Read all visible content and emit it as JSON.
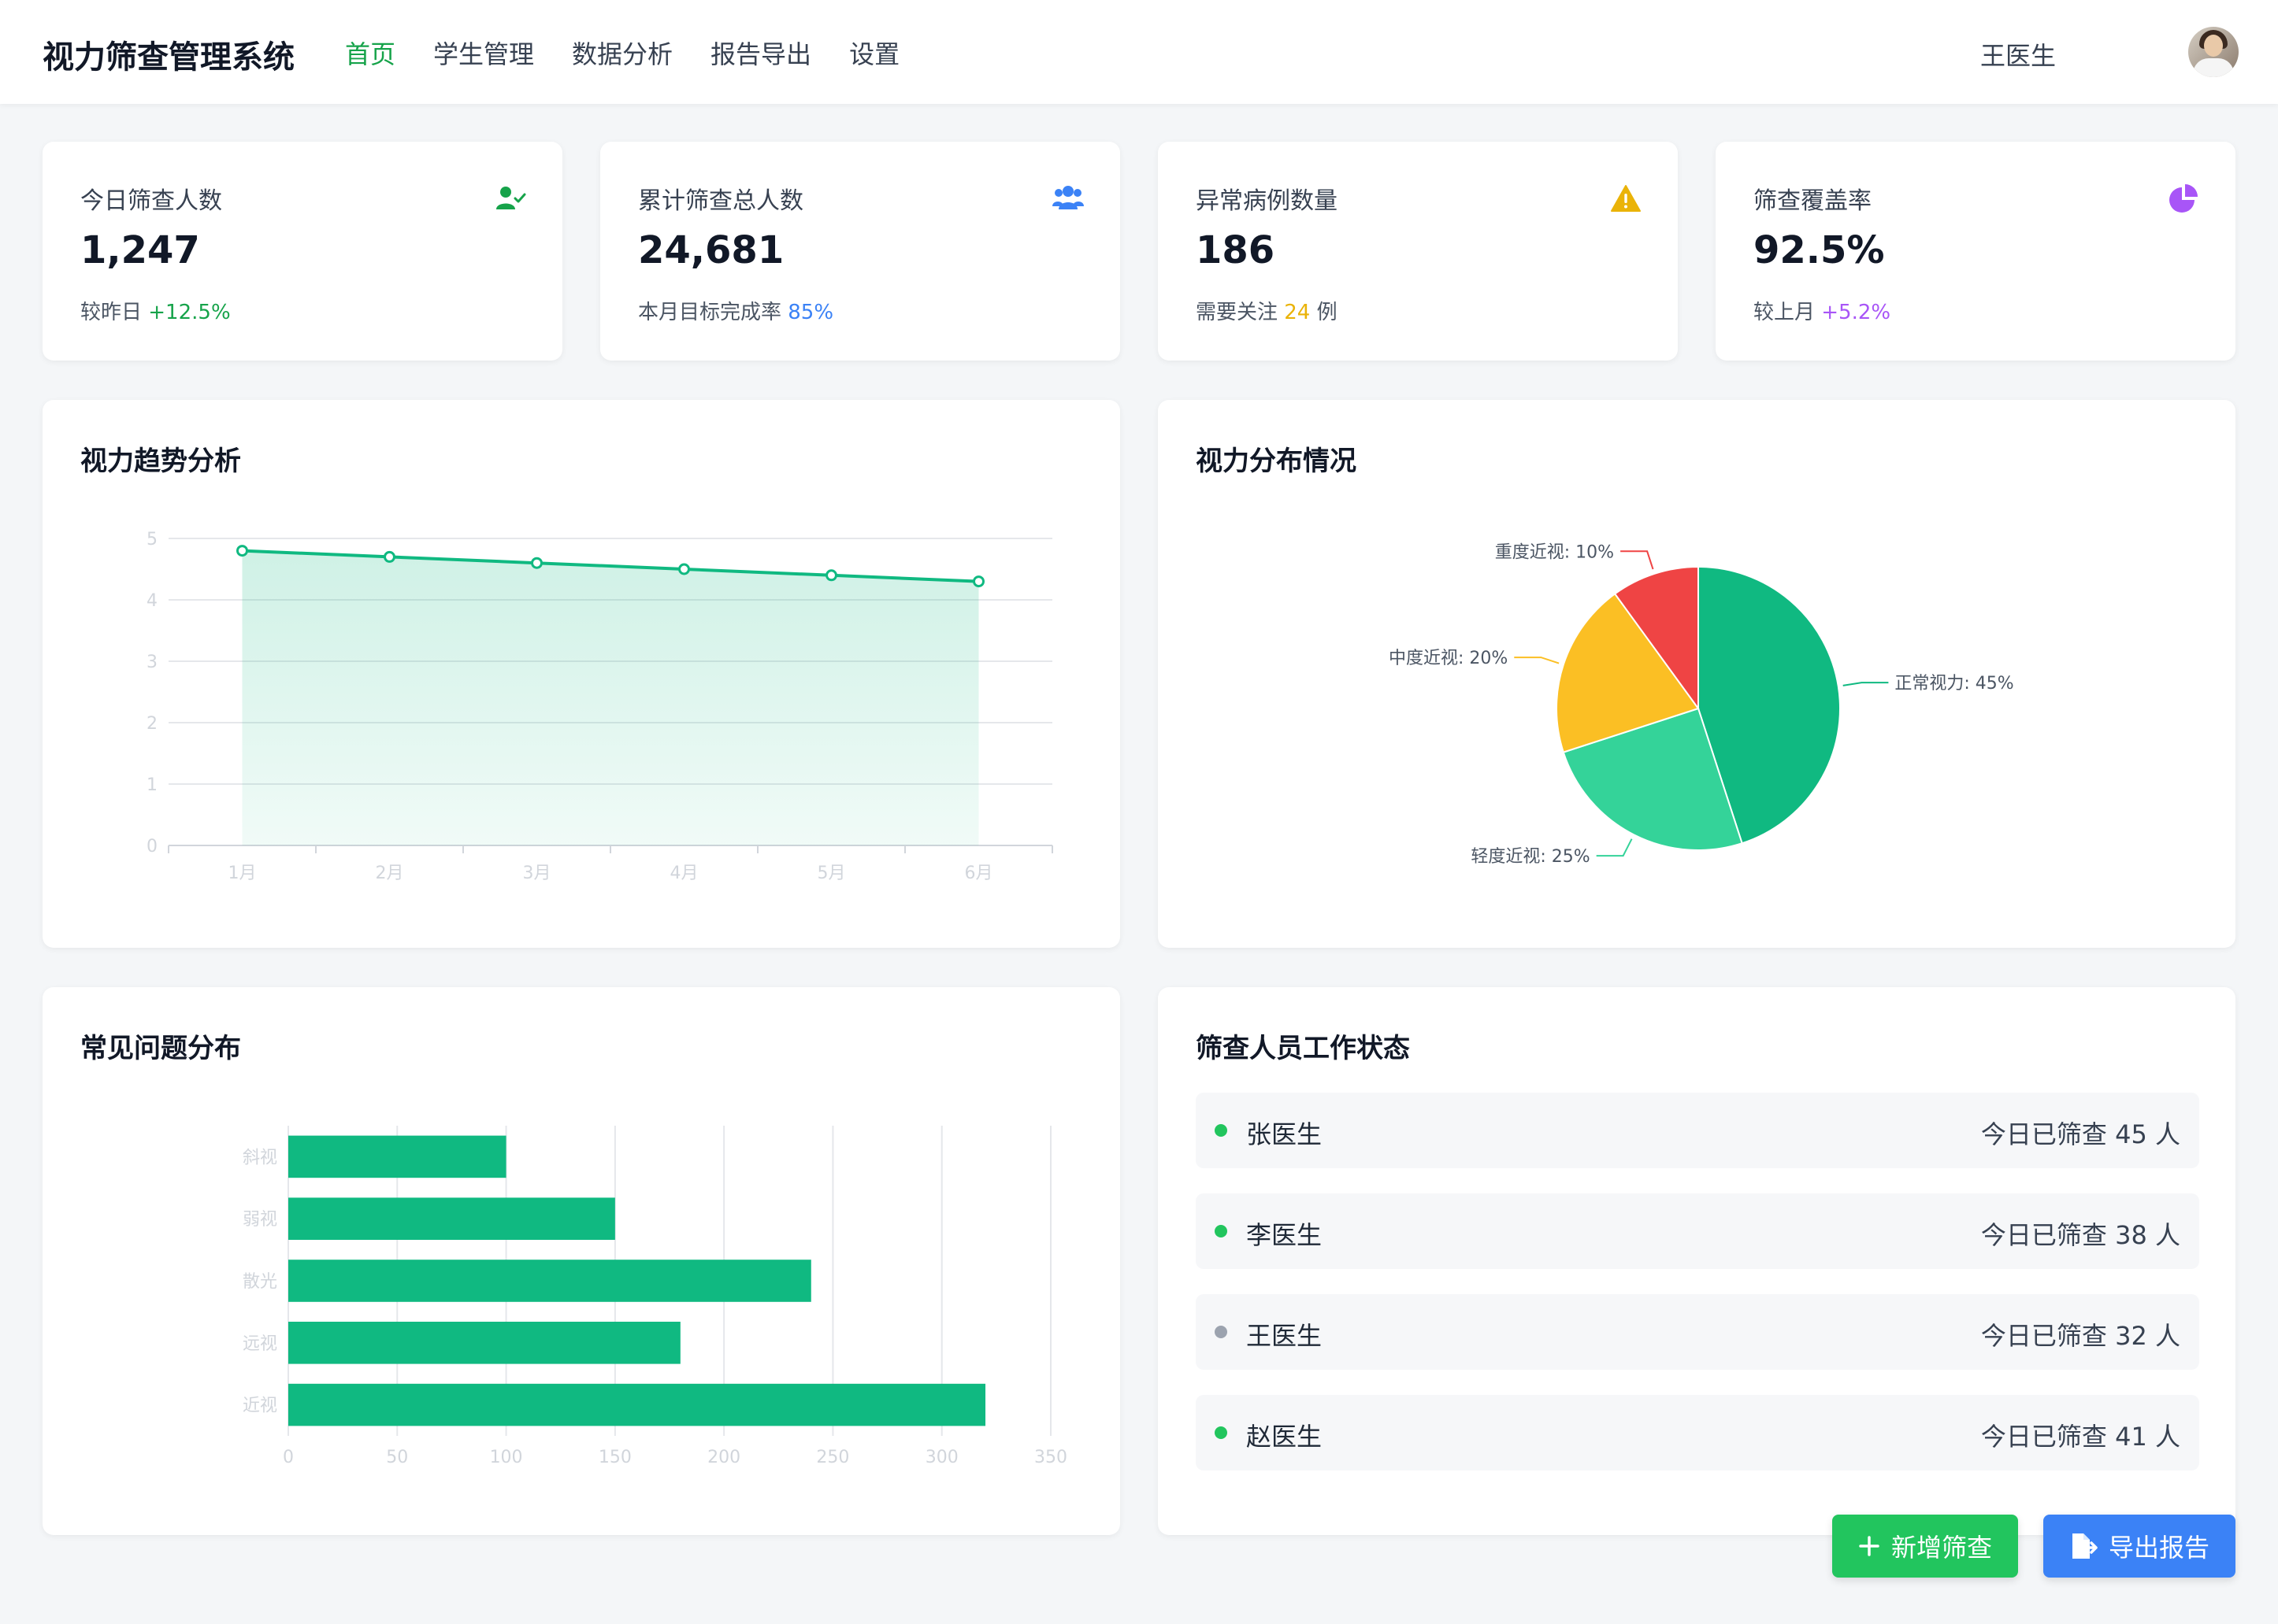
{
  "header": {
    "app_title": "视力筛查管理系统",
    "nav": [
      {
        "label": "首页",
        "active": true
      },
      {
        "label": "学生管理",
        "active": false
      },
      {
        "label": "数据分析",
        "active": false
      },
      {
        "label": "报告导出",
        "active": false
      },
      {
        "label": "设置",
        "active": false
      }
    ],
    "user_name": "王医生"
  },
  "stats": [
    {
      "label": "今日筛查人数",
      "value": "1,247",
      "sub_prefix": "较昨日 ",
      "sub_highlight": "+12.5%",
      "sub_suffix": "",
      "highlight_color": "#16a34a",
      "icon": "user-check-icon",
      "icon_color": "#16a34a"
    },
    {
      "label": "累计筛查总人数",
      "value": "24,681",
      "sub_prefix": "本月目标完成率 ",
      "sub_highlight": "85%",
      "sub_suffix": "",
      "highlight_color": "#3b82f6",
      "icon": "users-icon",
      "icon_color": "#3b82f6"
    },
    {
      "label": "异常病例数量",
      "value": "186",
      "sub_prefix": "需要关注 ",
      "sub_highlight": "24",
      "sub_suffix": " 例",
      "highlight_color": "#eab308",
      "icon": "warning-icon",
      "icon_color": "#eab308"
    },
    {
      "label": "筛查覆盖率",
      "value": "92.5%",
      "sub_prefix": "较上月 ",
      "sub_highlight": "+5.2%",
      "sub_suffix": "",
      "highlight_color": "#a855f7",
      "icon": "pie-chart-icon",
      "icon_color": "#a855f7"
    }
  ],
  "panels": {
    "trend_title": "视力趋势分析",
    "distribution_title": "视力分布情况",
    "issues_title": "常见问题分布",
    "staff_title": "筛查人员工作状态"
  },
  "chart_data": [
    {
      "type": "area",
      "title": "视力趋势分析",
      "x": [
        "1月",
        "2月",
        "3月",
        "4月",
        "5月",
        "6月"
      ],
      "values": [
        4.8,
        4.7,
        4.6,
        4.5,
        4.4,
        4.3
      ],
      "ylim": [
        0,
        5
      ],
      "yticks": [
        0,
        1,
        2,
        3,
        4,
        5
      ],
      "grid": true,
      "color": "#10b981"
    },
    {
      "type": "pie",
      "title": "视力分布情况",
      "slices": [
        {
          "label": "正常视力",
          "value": 45,
          "text": "正常视力: 45%",
          "color": "#10b981"
        },
        {
          "label": "轻度近视",
          "value": 25,
          "text": "轻度近视: 25%",
          "color": "#34d399"
        },
        {
          "label": "中度近视",
          "value": 20,
          "text": "中度近视: 20%",
          "color": "#fbbf24"
        },
        {
          "label": "重度近视",
          "value": 10,
          "text": "重度近视: 10%",
          "color": "#ef4444"
        }
      ]
    },
    {
      "type": "bar",
      "orientation": "horizontal",
      "title": "常见问题分布",
      "categories": [
        "近视",
        "远视",
        "散光",
        "弱视",
        "斜视"
      ],
      "values": [
        320,
        180,
        240,
        150,
        100
      ],
      "xlim": [
        0,
        350
      ],
      "xticks": [
        0,
        50,
        100,
        150,
        200,
        250,
        300,
        350
      ],
      "grid": true,
      "color": "#10b981"
    }
  ],
  "staff": [
    {
      "name": "张医生",
      "count_text": "今日已筛查 45 人",
      "status_color": "#22c55e"
    },
    {
      "name": "李医生",
      "count_text": "今日已筛查 38 人",
      "status_color": "#22c55e"
    },
    {
      "name": "王医生",
      "count_text": "今日已筛查 32 人",
      "status_color": "#9ca3af"
    },
    {
      "name": "赵医生",
      "count_text": "今日已筛查 41 人",
      "status_color": "#22c55e"
    }
  ],
  "actions": {
    "add_label": "新增筛查",
    "add_color": "#22c55e",
    "export_label": "导出报告",
    "export_color": "#3b82f6"
  }
}
